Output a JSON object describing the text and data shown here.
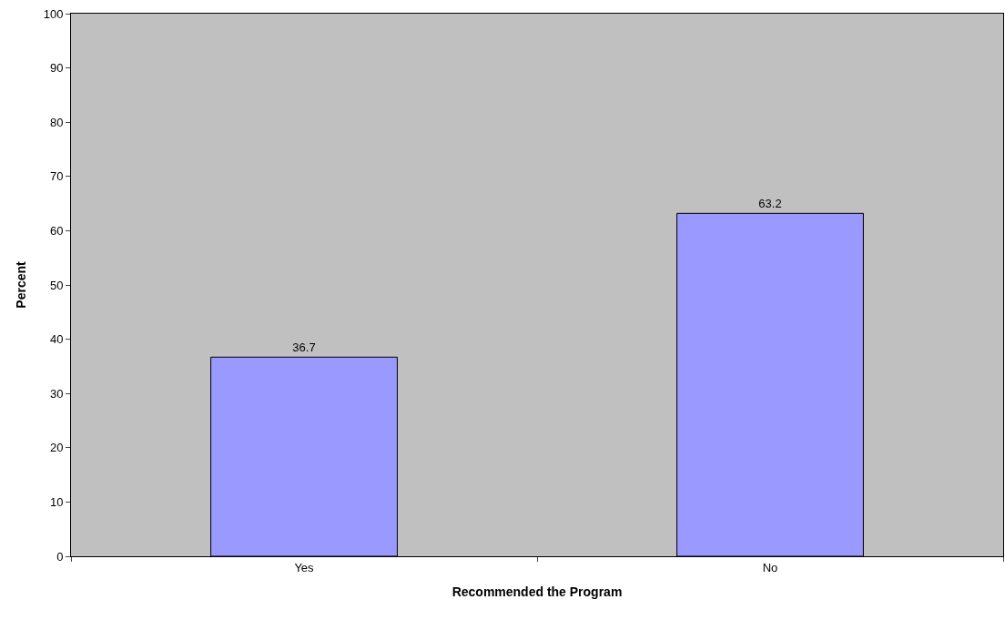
{
  "chart_data": {
    "type": "bar",
    "xlabel": "Recommended the Program",
    "ylabel": "Percent",
    "categories": [
      "Yes",
      "No"
    ],
    "values": [
      36.7,
      63.2
    ],
    "color": "#9999ff",
    "ylim": [
      0,
      100
    ],
    "yticks": [
      0,
      10,
      20,
      30,
      40,
      50,
      60,
      70,
      80,
      90,
      100
    ],
    "data_labels": true,
    "grid": false,
    "legend": false
  }
}
